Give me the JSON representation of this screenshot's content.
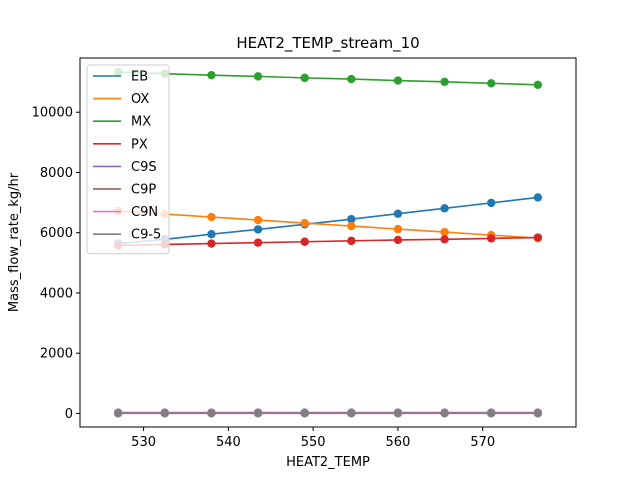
{
  "chart_data": {
    "type": "line",
    "title": "HEAT2_TEMP_stream_10",
    "xlabel": "HEAT2_TEMP",
    "ylabel": "Mass_flow_rate_kg/hr",
    "xlim": [
      522.5,
      581
    ],
    "ylim": [
      -450,
      11800
    ],
    "xticks": [
      530,
      540,
      550,
      560,
      570
    ],
    "yticks": [
      0,
      2000,
      4000,
      6000,
      8000,
      10000
    ],
    "grid": false,
    "legend_position": "top-left",
    "x": [
      527,
      532.5,
      538,
      543.5,
      549,
      554.5,
      560,
      565.5,
      571,
      576.5
    ],
    "series": [
      {
        "name": "EB",
        "color": "#1f77b4",
        "values": [
          5640,
          5780,
          5950,
          6110,
          6280,
          6450,
          6630,
          6810,
          6990,
          7170
        ]
      },
      {
        "name": "OX",
        "color": "#ff7f0e",
        "values": [
          6720,
          6620,
          6520,
          6420,
          6320,
          6220,
          6120,
          6020,
          5920,
          5820
        ]
      },
      {
        "name": "MX",
        "color": "#2ca02c",
        "values": [
          11330,
          11280,
          11230,
          11190,
          11140,
          11100,
          11050,
          11010,
          10960,
          10910
        ]
      },
      {
        "name": "PX",
        "color": "#d62728",
        "values": [
          5580,
          5610,
          5640,
          5670,
          5700,
          5730,
          5760,
          5780,
          5810,
          5840
        ]
      },
      {
        "name": "C9S",
        "color": "#9467bd",
        "values": [
          30,
          30,
          30,
          30,
          30,
          30,
          30,
          30,
          30,
          30
        ]
      },
      {
        "name": "C9P",
        "color": "#8c564b",
        "values": [
          10,
          10,
          10,
          10,
          10,
          10,
          10,
          10,
          10,
          10
        ]
      },
      {
        "name": "C9N",
        "color": "#e377c2",
        "values": [
          15,
          15,
          15,
          15,
          15,
          15,
          15,
          15,
          15,
          15
        ]
      },
      {
        "name": "C9-5",
        "color": "#7f7f7f",
        "values": [
          5,
          5,
          5,
          5,
          5,
          5,
          5,
          5,
          5,
          5
        ]
      }
    ]
  }
}
